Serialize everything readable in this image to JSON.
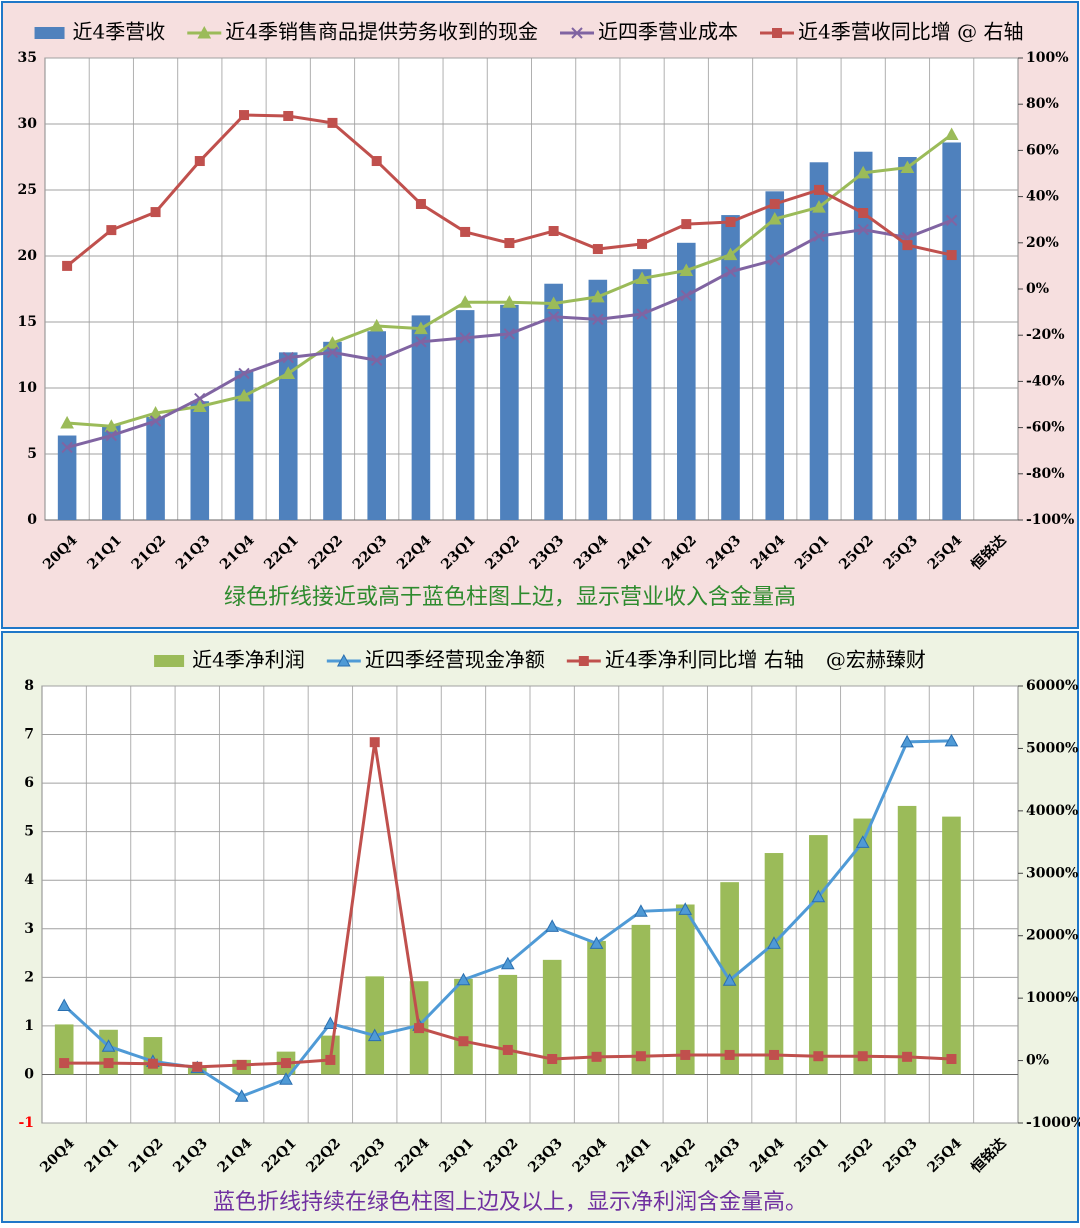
{
  "chart_data": [
    {
      "type": "bar_line",
      "annotation": "绿色折线接近或高于蓝色柱图上边，显示营业收入含金量高",
      "categories": [
        "20Q4",
        "21Q1",
        "21Q2",
        "21Q3",
        "21Q4",
        "22Q1",
        "22Q2",
        "22Q3",
        "22Q4",
        "23Q1",
        "23Q2",
        "23Q3",
        "23Q4",
        "24Q1",
        "24Q2",
        "24Q3",
        "24Q4",
        "25Q1",
        "25Q2",
        "25Q3",
        "25Q4",
        "恒铭达"
      ],
      "series": [
        {
          "name": "近4季营收",
          "kind": "bar",
          "color": "#4f81bd",
          "values": [
            6.4,
            7.2,
            7.8,
            9.0,
            11.3,
            12.7,
            13.5,
            14.3,
            15.5,
            15.9,
            16.3,
            17.9,
            18.2,
            19.0,
            21.0,
            23.1,
            24.9,
            27.1,
            27.9,
            27.5,
            28.6,
            null
          ]
        },
        {
          "name": "近4季销售商品提供劳务收到的现金",
          "kind": "line",
          "marker": "triangle",
          "color": "#9bbb59",
          "values": [
            7.35,
            7.1,
            8.1,
            8.6,
            9.4,
            11.1,
            13.4,
            14.7,
            14.5,
            16.5,
            16.5,
            16.4,
            16.9,
            18.3,
            18.9,
            20.1,
            22.8,
            23.7,
            26.3,
            26.7,
            29.2,
            null
          ]
        },
        {
          "name": "近四季营业成本",
          "kind": "line",
          "marker": "x",
          "color": "#8064a2",
          "values": [
            5.5,
            6.4,
            7.5,
            9.2,
            11.1,
            12.3,
            12.7,
            12.1,
            13.5,
            13.8,
            14.1,
            15.4,
            15.2,
            15.6,
            17.0,
            18.8,
            19.7,
            21.5,
            22.0,
            21.4,
            22.7,
            null
          ]
        },
        {
          "name": "近4季营收同比增 @ 右轴",
          "kind": "line",
          "marker": "square",
          "color": "#c0504d",
          "axis": "y2",
          "values": [
            10,
            25.5,
            33.3,
            55.4,
            75.3,
            74.9,
            71.9,
            55.4,
            36.8,
            24.7,
            19.9,
            25.1,
            17.3,
            19.5,
            28.1,
            29.0,
            36.8,
            42.9,
            32.9,
            19.0,
            14.7,
            null
          ]
        }
      ],
      "ylim": [
        0,
        35
      ],
      "yticks": [
        0,
        5,
        10,
        15,
        20,
        25,
        30,
        35
      ],
      "y2lim": [
        -100,
        100
      ],
      "y2ticks": [
        {
          "value": -100,
          "label": "-100%"
        },
        {
          "value": -80,
          "label": "-80%"
        },
        {
          "value": -60,
          "label": "-60%"
        },
        {
          "value": -40,
          "label": "-40%"
        },
        {
          "value": -20,
          "label": "-20%"
        },
        {
          "value": 0,
          "label": "0%"
        },
        {
          "value": 20,
          "label": "20%"
        },
        {
          "value": 40,
          "label": "40%"
        },
        {
          "value": 60,
          "label": "60%"
        },
        {
          "value": 80,
          "label": "80%"
        },
        {
          "value": 100,
          "label": "100%"
        }
      ],
      "grid": true,
      "background": "#f6dfdf",
      "annotation_color": "#2e8b2e"
    },
    {
      "type": "bar_line",
      "annotation": "蓝色折线持续在绿色柱图上边及以上，显示净利润含金量高。",
      "legend_note": "@宏赫臻财",
      "categories": [
        "20Q4",
        "21Q1",
        "21Q2",
        "21Q3",
        "21Q4",
        "22Q1",
        "22Q2",
        "22Q3",
        "22Q4",
        "23Q1",
        "23Q2",
        "23Q3",
        "23Q4",
        "24Q1",
        "24Q2",
        "24Q3",
        "24Q4",
        "25Q1",
        "25Q2",
        "25Q3",
        "25Q4",
        "恒铭达"
      ],
      "series": [
        {
          "name": "近4季净利润",
          "kind": "bar",
          "color": "#9bbb59",
          "values": [
            1.03,
            0.92,
            0.77,
            0.15,
            0.3,
            0.47,
            0.8,
            2.02,
            1.92,
            1.97,
            2.05,
            2.36,
            2.75,
            3.08,
            3.5,
            3.96,
            4.56,
            4.93,
            5.27,
            5.53,
            5.31,
            null
          ]
        },
        {
          "name": "近四季经营现金净额",
          "kind": "line",
          "marker": "triangle",
          "color": "#4f9ad6",
          "values": [
            1.42,
            0.58,
            0.27,
            0.14,
            -0.45,
            -0.1,
            1.05,
            0.8,
            1.01,
            1.95,
            2.28,
            3.05,
            2.7,
            3.36,
            3.4,
            1.94,
            2.7,
            3.66,
            4.78,
            6.85,
            6.87,
            null
          ]
        },
        {
          "name": "近4季净利同比增 右轴",
          "kind": "line",
          "marker": "square",
          "color": "#c0504d",
          "axis": "y2",
          "values": [
            -40,
            -40,
            -50,
            -100,
            -70,
            -40,
            10,
            5100,
            520,
            310,
            170,
            25,
            60,
            70,
            90,
            90,
            90,
            70,
            70,
            60,
            25,
            null
          ]
        }
      ],
      "ylim": [
        -1,
        8
      ],
      "yticks": [
        -1,
        0,
        1,
        2,
        3,
        4,
        5,
        6,
        7,
        8
      ],
      "negative_tick_color": "#ff0000",
      "y2lim": [
        -1000,
        6000
      ],
      "y2ticks": [
        {
          "value": -1000,
          "label": "-1000%"
        },
        {
          "value": 0,
          "label": "0%"
        },
        {
          "value": 1000,
          "label": "1000%"
        },
        {
          "value": 2000,
          "label": "2000%"
        },
        {
          "value": 3000,
          "label": "3000%"
        },
        {
          "value": 4000,
          "label": "4000%"
        },
        {
          "value": 5000,
          "label": "5000%"
        },
        {
          "value": 6000,
          "label": "6000%"
        }
      ],
      "grid": true,
      "background": "#eef3e3",
      "annotation_color": "#7030a0"
    }
  ]
}
